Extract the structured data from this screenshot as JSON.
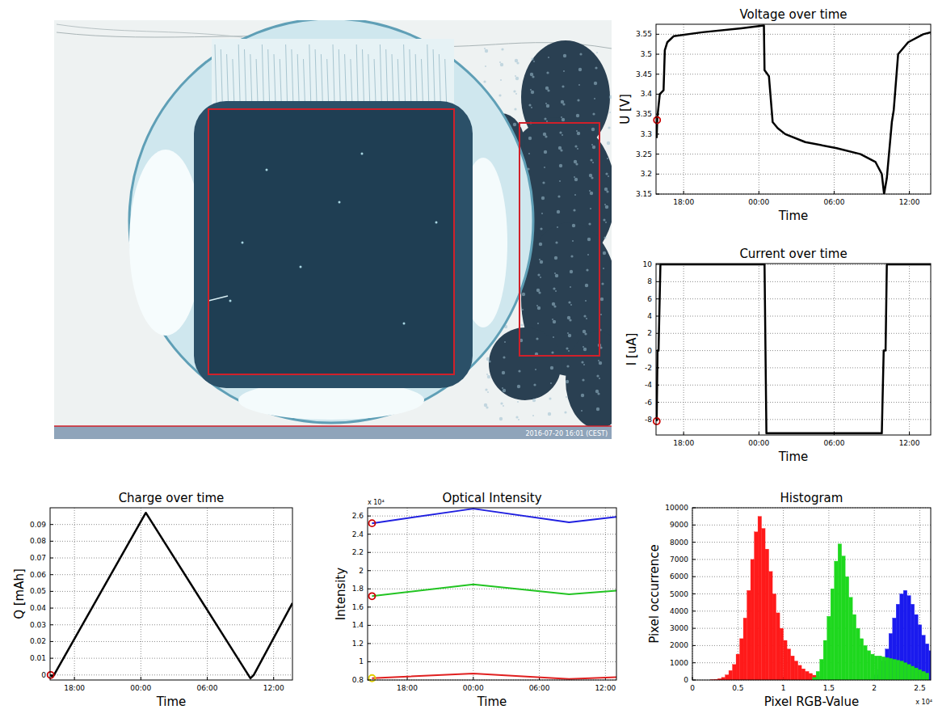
{
  "image": {
    "timestamp": "2016-07-20 16:01 (CEST)"
  },
  "chart_data": [
    {
      "type": "line",
      "title": "Voltage over time",
      "x_label": "Time",
      "y_label": "U [V]",
      "xlim": [
        15.8,
        37.7
      ],
      "xticks": [
        {
          "value": 18,
          "label": "18:00"
        },
        {
          "value": 24,
          "label": "00:00"
        },
        {
          "value": 30,
          "label": "06:00"
        },
        {
          "value": 36,
          "label": "12:00"
        }
      ],
      "ylim": [
        3.15,
        3.575
      ],
      "yticks": [
        3.15,
        3.2,
        3.25,
        3.3,
        3.35,
        3.4,
        3.45,
        3.5,
        3.55
      ],
      "grid": true,
      "series": [
        {
          "color": "#000000",
          "x": [
            15.85,
            15.9,
            16.1,
            16.4,
            16.5,
            16.7,
            17.2,
            19.5,
            22.6,
            24.4,
            24.45,
            24.8,
            25.1,
            25.5,
            26.1,
            27.7,
            30.2,
            32.1,
            33.3,
            33.8,
            33.98,
            34.2,
            34.6,
            34.75,
            35.1,
            35.9,
            37.1,
            37.7
          ],
          "values": [
            3.29,
            3.34,
            3.4,
            3.41,
            3.51,
            3.53,
            3.545,
            3.555,
            3.565,
            3.572,
            3.46,
            3.445,
            3.33,
            3.315,
            3.3,
            3.28,
            3.265,
            3.25,
            3.23,
            3.2,
            3.15,
            3.19,
            3.33,
            3.36,
            3.5,
            3.53,
            3.55,
            3.555
          ]
        },
        {
          "type": "scatter",
          "marker": "circle",
          "color": "#cc0000",
          "x": [
            15.88
          ],
          "values": [
            3.335
          ]
        }
      ]
    },
    {
      "type": "line",
      "title": "Current over time",
      "x_label": "Time",
      "y_label": "I [uA]",
      "xlim": [
        15.8,
        37.7
      ],
      "xticks": [
        {
          "value": 18,
          "label": "18:00"
        },
        {
          "value": 24,
          "label": "00:00"
        },
        {
          "value": 30,
          "label": "06:00"
        },
        {
          "value": 36,
          "label": "12:00"
        }
      ],
      "ylim": [
        -9.8,
        10.1
      ],
      "yticks": [
        -8,
        -6,
        -4,
        -2,
        0,
        2,
        4,
        6,
        8,
        10
      ],
      "grid": true,
      "series": [
        {
          "color": "#000000",
          "x": [
            15.85,
            15.92,
            16.0,
            16.15,
            24.45,
            24.6,
            33.8,
            33.95,
            34.1,
            34.2,
            37.7
          ],
          "values": [
            -8.2,
            0,
            0,
            10,
            10,
            -9.6,
            -9.6,
            0,
            0,
            10,
            10
          ]
        },
        {
          "type": "scatter",
          "marker": "circle",
          "color": "#cc0000",
          "x": [
            15.85
          ],
          "values": [
            -8.2
          ]
        }
      ]
    },
    {
      "type": "line",
      "title": "Charge over time",
      "x_label": "Time",
      "y_label": "Q [mAh]",
      "xlim": [
        15.8,
        37.7
      ],
      "xticks": [
        {
          "value": 18,
          "label": "18:00"
        },
        {
          "value": 24,
          "label": "00:00"
        },
        {
          "value": 30,
          "label": "06:00"
        },
        {
          "value": 36,
          "label": "12:00"
        }
      ],
      "ylim": [
        -0.003,
        0.1
      ],
      "yticks": [
        0,
        0.01,
        0.02,
        0.03,
        0.04,
        0.05,
        0.06,
        0.07,
        0.08,
        0.09
      ],
      "grid": true,
      "series": [
        {
          "color": "#000000",
          "x": [
            15.85,
            16.0,
            16.15,
            24.45,
            33.9,
            34.2,
            37.7
          ],
          "values": [
            0,
            -0.001,
            0,
            0.097,
            -0.002,
            0,
            0.043
          ]
        },
        {
          "type": "scatter",
          "marker": "circle",
          "color": "#cc0000",
          "x": [
            15.85
          ],
          "values": [
            0
          ]
        }
      ]
    },
    {
      "type": "line",
      "title": "Optical Intensity",
      "x_label": "Time",
      "y_label": "Intensity",
      "annotations": [
        "x 10⁴"
      ],
      "xlim": [
        14.4,
        37.0
      ],
      "xticks": [
        {
          "value": 18,
          "label": "18:00"
        },
        {
          "value": 24,
          "label": "00:00"
        },
        {
          "value": 30,
          "label": "06:00"
        },
        {
          "value": 36,
          "label": "12:00"
        }
      ],
      "ylim": [
        0.8,
        2.69
      ],
      "yticks": [
        0.8,
        1,
        1.2,
        1.4,
        1.6,
        1.8,
        2,
        2.2,
        2.4,
        2.6
      ],
      "grid": true,
      "series": [
        {
          "color": "#2020e0",
          "x": [
            14.8,
            24.0,
            32.7,
            37.0
          ],
          "values": [
            2.52,
            2.68,
            2.53,
            2.59
          ]
        },
        {
          "color": "#22c422",
          "x": [
            14.8,
            24.0,
            32.7,
            37.0
          ],
          "values": [
            1.72,
            1.85,
            1.74,
            1.78
          ]
        },
        {
          "color": "#e02020",
          "x": [
            14.8,
            24.0,
            32.7,
            37.0
          ],
          "values": [
            0.82,
            0.87,
            0.81,
            0.83
          ]
        },
        {
          "type": "scatter",
          "marker": "circle",
          "colors": [
            "#cc0000",
            "#cc0000",
            "#e0d000"
          ],
          "x": [
            14.8,
            14.8,
            14.8
          ],
          "values": [
            2.52,
            1.72,
            0.82
          ]
        }
      ]
    },
    {
      "type": "histogram",
      "title": "Histogram",
      "x_label": "Pixel RGB-Value",
      "y_label": "Pixel occurrence",
      "annotations": [
        "x 10⁴"
      ],
      "xlim": [
        0,
        2.62
      ],
      "xticks": [
        0,
        0.5,
        1,
        1.5,
        2,
        2.5
      ],
      "ylim": [
        0,
        10000
      ],
      "yticks": [
        0,
        1000,
        2000,
        3000,
        4000,
        5000,
        6000,
        7000,
        8000,
        9000,
        10000
      ],
      "grid": true,
      "series": [
        {
          "color": "#ff1a1a",
          "bins": [
            0.2,
            0.24,
            0.28,
            0.32,
            0.36,
            0.4,
            0.44,
            0.48,
            0.52,
            0.56,
            0.6,
            0.64,
            0.68,
            0.72,
            0.76,
            0.8,
            0.84,
            0.88,
            0.92,
            0.96,
            1,
            1.04,
            1.08,
            1.12,
            1.16,
            1.2,
            1.24,
            1.28,
            1.32,
            1.36,
            1.4
          ],
          "values": [
            20,
            40,
            80,
            150,
            300,
            550,
            900,
            1500,
            2400,
            3600,
            5200,
            7000,
            8600,
            9500,
            8800,
            7600,
            6300,
            5000,
            3900,
            3000,
            2300,
            1800,
            1400,
            1100,
            850,
            650,
            500,
            380,
            280,
            200
          ]
        },
        {
          "color": "#1a1aee",
          "bins": [
            1.96,
            2,
            2.04,
            2.08,
            2.12,
            2.16,
            2.2,
            2.24,
            2.28,
            2.32,
            2.36,
            2.4,
            2.44,
            2.48,
            2.52,
            2.56,
            2.6,
            2.64
          ],
          "values": [
            100,
            300,
            600,
            1100,
            1800,
            2700,
            3600,
            4400,
            5000,
            5200,
            4900,
            4400,
            3800,
            3200,
            2600,
            2100,
            1700
          ]
        },
        {
          "color": "#1ed81e",
          "bins": [
            1.32,
            1.36,
            1.4,
            1.44,
            1.48,
            1.52,
            1.56,
            1.6,
            1.64,
            1.68,
            1.72,
            1.76,
            1.8,
            1.84,
            1.88,
            1.92,
            1.96,
            2,
            2.04,
            2.08,
            2.12,
            2.16,
            2.2,
            2.24,
            2.28,
            2.32,
            2.36,
            2.4,
            2.44,
            2.48,
            2.52,
            2.56,
            2.6
          ],
          "values": [
            150,
            500,
            1200,
            2300,
            3700,
            5300,
            6900,
            7900,
            7200,
            6000,
            4800,
            3800,
            3000,
            2400,
            2000,
            1700,
            1500,
            1400,
            1400,
            1350,
            1300,
            1250,
            1200,
            1150,
            1100,
            1000,
            900,
            800,
            700,
            600,
            500,
            400
          ]
        }
      ]
    }
  ]
}
